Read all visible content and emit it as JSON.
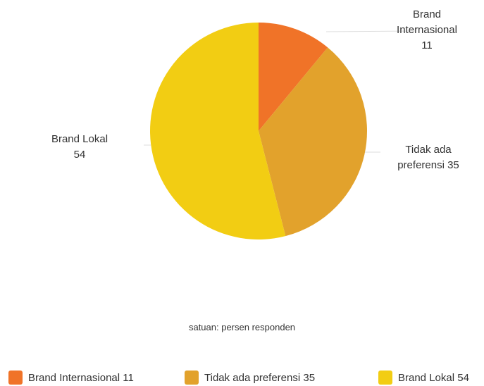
{
  "chart_data": {
    "type": "pie",
    "categories": [
      "Brand Internasional",
      "Tidak ada preferensi",
      "Brand Lokal"
    ],
    "values": [
      11,
      35,
      54
    ],
    "colors": [
      "#f07328",
      "#e2a22c",
      "#f2cd13"
    ],
    "slice_labels": [
      [
        "Brand",
        "Internasional",
        "11"
      ],
      [
        "Tidak ada",
        "preferensi 35"
      ],
      [
        "Brand Lokal",
        "54"
      ]
    ],
    "legend": [
      "Brand Internasional 11",
      "Tidak ada preferensi 35",
      "Brand Lokal 54"
    ],
    "legend_position": "bottom",
    "note": "satuan: persen responden",
    "start_angle_deg": 0,
    "direction": "clockwise"
  }
}
